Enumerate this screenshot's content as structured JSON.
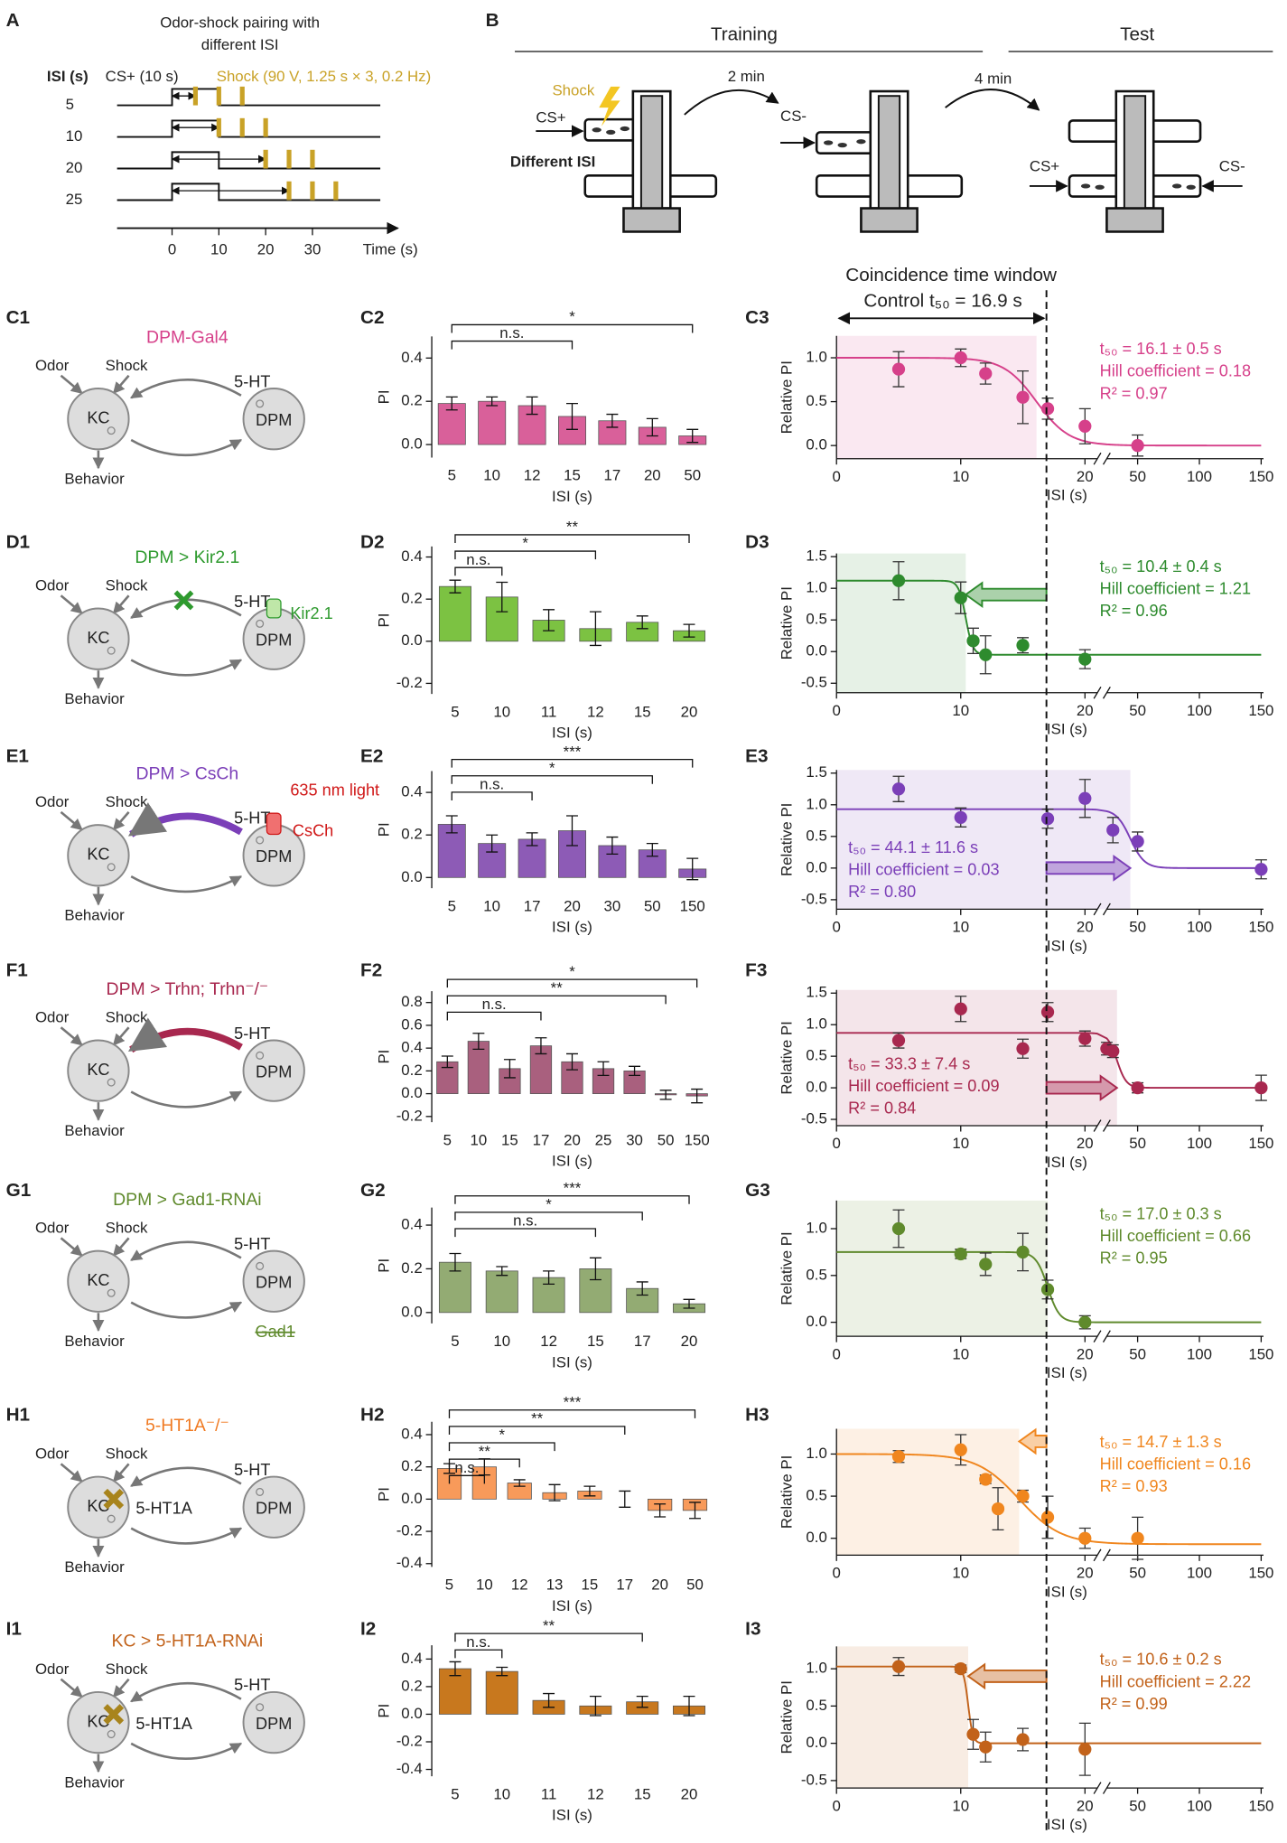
{
  "panel_a": {
    "label": "A",
    "title_lines": [
      "Odor-shock pairing with",
      "different ISI"
    ],
    "isi_header": "ISI (s)",
    "cs_label": "CS+ (10 s)",
    "shock_label": "Shock (90 V, 1.25 s × 3, 0.2 Hz)",
    "isi": [
      5,
      10,
      20,
      25
    ],
    "cs_duration": 10,
    "shock_interval": 5,
    "shock_count": 3,
    "shock_color": "#c9a227",
    "xticks": [
      0,
      10,
      20,
      30
    ],
    "xlabel": "Time (s)"
  },
  "panel_b": {
    "label": "B",
    "training": "Training",
    "test": "Test",
    "shock": "Shock",
    "cs_plus": "CS+",
    "different_isi": "Different ISI",
    "interval_1": "2 min",
    "cs_minus": "CS-",
    "interval_2": "4 min",
    "test_left": "CS+",
    "test_right": "CS-"
  },
  "window": {
    "title": "Coincidence time window",
    "control_label": "Control t₅₀ = 16.9 s",
    "control_t50": 16.9
  },
  "circuit_text": {
    "odor": "Odor",
    "shock": "Shock",
    "kc": "KC",
    "dpm": "DPM",
    "serotonin": "5-HT",
    "behavior": "Behavior"
  },
  "circuits": [
    {
      "label": "C1",
      "title": "DPM-Gal4",
      "color": "#d6408a",
      "upper_arrow": "normal",
      "extras": []
    },
    {
      "label": "D1",
      "title": "DPM > Kir2.1",
      "color": "#2e9a2e",
      "upper_arrow": "blocked",
      "extras": [
        {
          "text": "Kir2.1",
          "color": "#2e9a2e"
        }
      ]
    },
    {
      "label": "E1",
      "title": "DPM > CsCh",
      "color": "#7b3fb8",
      "upper_arrow": "enhanced",
      "extras": [
        {
          "text": "635 nm light",
          "color": "#d01818"
        },
        {
          "text": "CsCh",
          "color": "#d01818"
        }
      ]
    },
    {
      "label": "F1",
      "title": "DPM > Trhn; Trhn⁻/⁻",
      "color": "#a8284f",
      "upper_arrow": "enhanced",
      "extras": []
    },
    {
      "label": "G1",
      "title": "DPM > Gad1-RNAi",
      "color": "#5f8a2c",
      "upper_arrow": "normal",
      "extras": [
        {
          "text": "Gad1",
          "color": "#5f8a2c"
        }
      ]
    },
    {
      "label": "H1",
      "title": "5-HT1A⁻/⁻",
      "color": "#f07a22",
      "upper_arrow": "normal",
      "extras": [
        {
          "text": "5-HT1A",
          "color": "#222222"
        }
      ]
    },
    {
      "label": "I1",
      "title": "KC > 5-HT1A-RNAi",
      "color": "#c2621a",
      "upper_arrow": "normal",
      "extras": [
        {
          "text": "5-HT1A",
          "color": "#222222"
        }
      ]
    }
  ],
  "chart_data": [
    {
      "type": "bar",
      "label": "C2",
      "categories": [
        "5",
        "10",
        "12",
        "15",
        "17",
        "20",
        "50"
      ],
      "values": [
        0.19,
        0.2,
        0.18,
        0.13,
        0.11,
        0.08,
        0.04
      ],
      "errors": [
        0.03,
        0.02,
        0.04,
        0.06,
        0.03,
        0.04,
        0.03
      ],
      "color": "#d9609a",
      "ylim": [
        -0.06,
        0.5
      ],
      "yticks": [
        {
          "value": 0,
          "label": "0.0"
        },
        0.2,
        0.4
      ],
      "ylabel": "PI",
      "xlabel": "ISI (s)",
      "brackets": [
        {
          "label": "*",
          "from": "5",
          "to": "50"
        },
        {
          "label": "n.s.",
          "from": "5",
          "to": "15"
        }
      ]
    },
    {
      "type": "scatter",
      "label": "C3",
      "x": [
        5,
        10,
        12,
        15,
        17,
        20,
        50
      ],
      "values": [
        0.87,
        1.0,
        0.82,
        0.55,
        0.42,
        0.22,
        0.0
      ],
      "errors": [
        0.2,
        0.1,
        0.12,
        0.3,
        0.12,
        0.2,
        0.12
      ],
      "color": "#d6408a",
      "xlim": [
        0,
        150
      ],
      "x_break": [
        21,
        25
      ],
      "xticks": [
        0,
        10,
        20,
        50,
        100,
        150
      ],
      "ylim": [
        -0.15,
        1.25
      ],
      "yticks": [
        {
          "value": 0,
          "label": "0.0"
        },
        0.5,
        {
          "value": 1,
          "label": "1.0"
        }
      ],
      "ylabel": "Relative PI",
      "xlabel": "ISI (s)",
      "t50": 16.1,
      "fit_top": 1.0,
      "fit_bottom": 0.0,
      "stats": [
        "t₅₀ = 16.1 ± 0.5 s",
        "Hill coefficient = 0.18",
        "R² = 0.97"
      ],
      "stats_corner": "upper right"
    },
    {
      "type": "bar",
      "label": "D2",
      "categories": [
        "5",
        "10",
        "11",
        "12",
        "15",
        "20"
      ],
      "values": [
        0.26,
        0.21,
        0.1,
        0.06,
        0.09,
        0.05
      ],
      "errors": [
        0.03,
        0.07,
        0.05,
        0.08,
        0.03,
        0.03
      ],
      "color": "#7cc242",
      "ylim": [
        -0.25,
        0.45
      ],
      "yticks": [
        -0.2,
        {
          "value": 0,
          "label": "0.0"
        },
        0.2,
        0.4
      ],
      "ylabel": "PI",
      "xlabel": "ISI (s)",
      "brackets": [
        {
          "label": "**",
          "from": "5",
          "to": "20"
        },
        {
          "label": "*",
          "from": "5",
          "to": "12"
        },
        {
          "label": "n.s.",
          "from": "5",
          "to": "10"
        }
      ]
    },
    {
      "type": "scatter",
      "label": "D3",
      "x": [
        5,
        10,
        11,
        12,
        15,
        20
      ],
      "values": [
        1.12,
        0.85,
        0.17,
        -0.05,
        0.1,
        -0.12
      ],
      "errors": [
        0.3,
        0.25,
        0.2,
        0.3,
        0.12,
        0.15
      ],
      "color": "#2e8b2e",
      "xlim": [
        0,
        150
      ],
      "x_break": [
        21,
        25
      ],
      "xticks": [
        0,
        10,
        20,
        50,
        100,
        150
      ],
      "ylim": [
        -0.65,
        1.55
      ],
      "yticks": [
        -0.5,
        {
          "value": 0,
          "label": "0.0"
        },
        0.5,
        {
          "value": 1,
          "label": "1.0"
        },
        1.5
      ],
      "ylabel": "Relative PI",
      "xlabel": "ISI (s)",
      "t50": 10.4,
      "fit_top": 1.12,
      "fit_bottom": -0.05,
      "stats": [
        "t₅₀ = 10.4 ± 0.4 s",
        "Hill coefficient = 1.21",
        "R² = 0.96"
      ],
      "stats_corner": "upper right"
    },
    {
      "type": "bar",
      "label": "E2",
      "categories": [
        "5",
        "10",
        "17",
        "20",
        "30",
        "50",
        "150"
      ],
      "values": [
        0.25,
        0.16,
        0.18,
        0.22,
        0.15,
        0.13,
        0.04
      ],
      "errors": [
        0.04,
        0.04,
        0.03,
        0.07,
        0.04,
        0.03,
        0.05
      ],
      "color": "#8d5bb6",
      "ylim": [
        -0.05,
        0.5
      ],
      "yticks": [
        {
          "value": 0,
          "label": "0.0"
        },
        0.2,
        0.4
      ],
      "ylabel": "PI",
      "xlabel": "ISI (s)",
      "brackets": [
        {
          "label": "***",
          "from": "5",
          "to": "150"
        },
        {
          "label": "*",
          "from": "5",
          "to": "50"
        },
        {
          "label": "n.s.",
          "from": "5",
          "to": "17"
        }
      ]
    },
    {
      "type": "scatter",
      "label": "E3",
      "x": [
        5,
        10,
        17,
        20,
        30,
        50,
        150
      ],
      "values": [
        1.25,
        0.8,
        0.78,
        1.1,
        0.6,
        0.42,
        -0.02
      ],
      "errors": [
        0.2,
        0.15,
        0.15,
        0.3,
        0.2,
        0.15,
        0.15
      ],
      "color": "#7b3fb8",
      "xlim": [
        0,
        150
      ],
      "x_break": [
        21,
        25
      ],
      "xticks": [
        0,
        10,
        20,
        50,
        100,
        150
      ],
      "ylim": [
        -0.65,
        1.55
      ],
      "yticks": [
        -0.5,
        {
          "value": 0,
          "label": "0.0"
        },
        0.5,
        {
          "value": 1,
          "label": "1.0"
        },
        1.5
      ],
      "ylabel": "Relative PI",
      "xlabel": "ISI (s)",
      "t50": 44.1,
      "fit_top": 0.93,
      "fit_bottom": 0.0,
      "stats": [
        "t₅₀ = 44.1 ± 11.6 s",
        "Hill coefficient = 0.03",
        "R² = 0.80"
      ],
      "stats_corner": "lower left"
    },
    {
      "type": "bar",
      "label": "F2",
      "categories": [
        "5",
        "10",
        "15",
        "17",
        "20",
        "25",
        "30",
        "50",
        "150"
      ],
      "values": [
        0.28,
        0.46,
        0.22,
        0.42,
        0.28,
        0.22,
        0.2,
        -0.01,
        -0.02
      ],
      "errors": [
        0.05,
        0.07,
        0.08,
        0.07,
        0.07,
        0.06,
        0.04,
        0.04,
        0.06
      ],
      "color": "#a9607e",
      "ylim": [
        -0.25,
        0.9
      ],
      "yticks": [
        -0.2,
        {
          "value": 0,
          "label": "0.0"
        },
        0.2,
        0.4,
        0.6,
        0.8
      ],
      "ylabel": "PI",
      "xlabel": "ISI (s)",
      "brackets": [
        {
          "label": "*",
          "from": "5",
          "to": "150"
        },
        {
          "label": "**",
          "from": "5",
          "to": "50"
        },
        {
          "label": "n.s.",
          "from": "5",
          "to": "17"
        }
      ]
    },
    {
      "type": "scatter",
      "label": "F3",
      "x": [
        5,
        10,
        15,
        17,
        20,
        25,
        30,
        50,
        150
      ],
      "values": [
        0.75,
        1.25,
        0.62,
        1.2,
        0.78,
        0.62,
        0.58,
        0.0,
        0.0
      ],
      "errors": [
        0.12,
        0.2,
        0.15,
        0.15,
        0.12,
        0.1,
        0.1,
        0.08,
        0.2
      ],
      "color": "#a8284f",
      "xlim": [
        0,
        150
      ],
      "x_break": [
        21,
        25
      ],
      "xticks": [
        0,
        10,
        20,
        50,
        100,
        150
      ],
      "ylim": [
        -0.6,
        1.55
      ],
      "yticks": [
        -0.5,
        {
          "value": 0,
          "label": "0.0"
        },
        0.5,
        {
          "value": 1,
          "label": "1.0"
        },
        1.5
      ],
      "ylabel": "Relative PI",
      "xlabel": "ISI (s)",
      "t50": 33.3,
      "fit_top": 0.87,
      "fit_bottom": 0.0,
      "stats": [
        "t₅₀ = 33.3 ± 7.4 s",
        "Hill coefficient = 0.09",
        "R² = 0.84"
      ],
      "stats_corner": "lower left"
    },
    {
      "type": "bar",
      "label": "G2",
      "categories": [
        "5",
        "10",
        "12",
        "15",
        "17",
        "20"
      ],
      "values": [
        0.23,
        0.19,
        0.16,
        0.2,
        0.11,
        0.04
      ],
      "errors": [
        0.04,
        0.02,
        0.03,
        0.05,
        0.03,
        0.02
      ],
      "color": "#93ab73",
      "ylim": [
        -0.05,
        0.48
      ],
      "yticks": [
        {
          "value": 0,
          "label": "0.0"
        },
        0.2,
        0.4
      ],
      "ylabel": "PI",
      "xlabel": "ISI (s)",
      "brackets": [
        {
          "label": "***",
          "from": "5",
          "to": "20"
        },
        {
          "label": "*",
          "from": "5",
          "to": "17"
        },
        {
          "label": "n.s.",
          "from": "5",
          "to": "15"
        }
      ]
    },
    {
      "type": "scatter",
      "label": "G3",
      "x": [
        5,
        10,
        12,
        15,
        17,
        20
      ],
      "values": [
        1.0,
        0.73,
        0.62,
        0.75,
        0.35,
        0.0
      ],
      "errors": [
        0.2,
        0.05,
        0.12,
        0.2,
        0.1,
        0.07
      ],
      "color": "#5f8a2c",
      "xlim": [
        0,
        150
      ],
      "x_break": [
        21,
        25
      ],
      "xticks": [
        0,
        10,
        20,
        50,
        100,
        150
      ],
      "ylim": [
        -0.15,
        1.3
      ],
      "yticks": [
        {
          "value": 0,
          "label": "0.0"
        },
        0.5,
        {
          "value": 1,
          "label": "1.0"
        }
      ],
      "ylabel": "Relative PI",
      "xlabel": "ISI (s)",
      "t50": 17.0,
      "fit_top": 0.75,
      "fit_bottom": 0.0,
      "stats": [
        "t₅₀ = 17.0 ± 0.3 s",
        "Hill coefficient = 0.66",
        "R² = 0.95"
      ],
      "stats_corner": "upper right"
    },
    {
      "type": "bar",
      "label": "H2",
      "categories": [
        "5",
        "10",
        "12",
        "13",
        "15",
        "17",
        "20",
        "50"
      ],
      "values": [
        0.19,
        0.2,
        0.1,
        0.04,
        0.05,
        0.0,
        -0.07,
        -0.07
      ],
      "errors": [
        0.03,
        0.05,
        0.02,
        0.05,
        0.03,
        0.05,
        0.04,
        0.05
      ],
      "color": "#f89a5a",
      "ylim": [
        -0.42,
        0.48
      ],
      "yticks": [
        -0.4,
        -0.2,
        {
          "value": 0,
          "label": "0.0"
        },
        0.2,
        0.4
      ],
      "ylabel": "PI",
      "xlabel": "ISI (s)",
      "brackets": [
        {
          "label": "***",
          "from": "5",
          "to": "50"
        },
        {
          "label": "**",
          "from": "5",
          "to": "17"
        },
        {
          "label": "*",
          "from": "5",
          "to": "13"
        },
        {
          "label": "**",
          "from": "5",
          "to": "12"
        },
        {
          "label": "n.s.",
          "from": "5",
          "to": "10"
        }
      ]
    },
    {
      "type": "scatter",
      "label": "H3",
      "x": [
        5,
        10,
        12,
        13,
        15,
        17,
        20,
        50
      ],
      "values": [
        0.97,
        1.05,
        0.7,
        0.35,
        0.5,
        0.25,
        0.0,
        0.0
      ],
      "errors": [
        0.07,
        0.18,
        0.05,
        0.25,
        0.07,
        0.25,
        0.12,
        0.25
      ],
      "color": "#f0861e",
      "xlim": [
        0,
        150
      ],
      "x_break": [
        21,
        25
      ],
      "xticks": [
        0,
        10,
        20,
        50,
        100,
        150
      ],
      "ylim": [
        -0.2,
        1.3
      ],
      "yticks": [
        {
          "value": 0,
          "label": "0.0"
        },
        0.5,
        {
          "value": 1,
          "label": "1.0"
        }
      ],
      "ylabel": "Relative PI",
      "xlabel": "ISI (s)",
      "t50": 14.7,
      "fit_top": 1.0,
      "fit_bottom": -0.07,
      "stats": [
        "t₅₀ = 14.7 ± 1.3 s",
        "Hill coefficient = 0.16",
        "R² = 0.93"
      ],
      "stats_corner": "upper right"
    },
    {
      "type": "bar",
      "label": "I2",
      "categories": [
        "5",
        "10",
        "11",
        "12",
        "15",
        "20"
      ],
      "values": [
        0.33,
        0.31,
        0.1,
        0.06,
        0.09,
        0.06
      ],
      "errors": [
        0.05,
        0.03,
        0.05,
        0.07,
        0.04,
        0.07
      ],
      "color": "#c8781e",
      "ylim": [
        -0.45,
        0.5
      ],
      "yticks": [
        -0.4,
        -0.2,
        {
          "value": 0,
          "label": "0.0"
        },
        0.2,
        0.4
      ],
      "ylabel": "PI",
      "xlabel": "ISI (s)",
      "brackets": [
        {
          "label": "**",
          "from": "5",
          "to": "15"
        },
        {
          "label": "n.s.",
          "from": "5",
          "to": "10"
        }
      ]
    },
    {
      "type": "scatter",
      "label": "I3",
      "x": [
        5,
        10,
        11,
        12,
        15,
        20
      ],
      "values": [
        1.03,
        1.0,
        0.12,
        -0.05,
        0.05,
        -0.08
      ],
      "errors": [
        0.12,
        0.05,
        0.2,
        0.2,
        0.15,
        0.35
      ],
      "color": "#c2621a",
      "xlim": [
        0,
        150
      ],
      "x_break": [
        21,
        25
      ],
      "xticks": [
        0,
        10,
        20,
        50,
        100,
        150
      ],
      "ylim": [
        -0.6,
        1.3
      ],
      "yticks": [
        -0.5,
        {
          "value": 0,
          "label": "0.0"
        },
        0.5,
        {
          "value": 1,
          "label": "1.0"
        }
      ],
      "ylabel": "Relative PI",
      "xlabel": "ISI (s)",
      "t50": 10.6,
      "fit_top": 1.03,
      "fit_bottom": 0.0,
      "stats": [
        "t₅₀ = 10.6 ± 0.2 s",
        "Hill coefficient = 2.22",
        "R² = 0.99"
      ],
      "stats_corner": "upper right"
    }
  ]
}
